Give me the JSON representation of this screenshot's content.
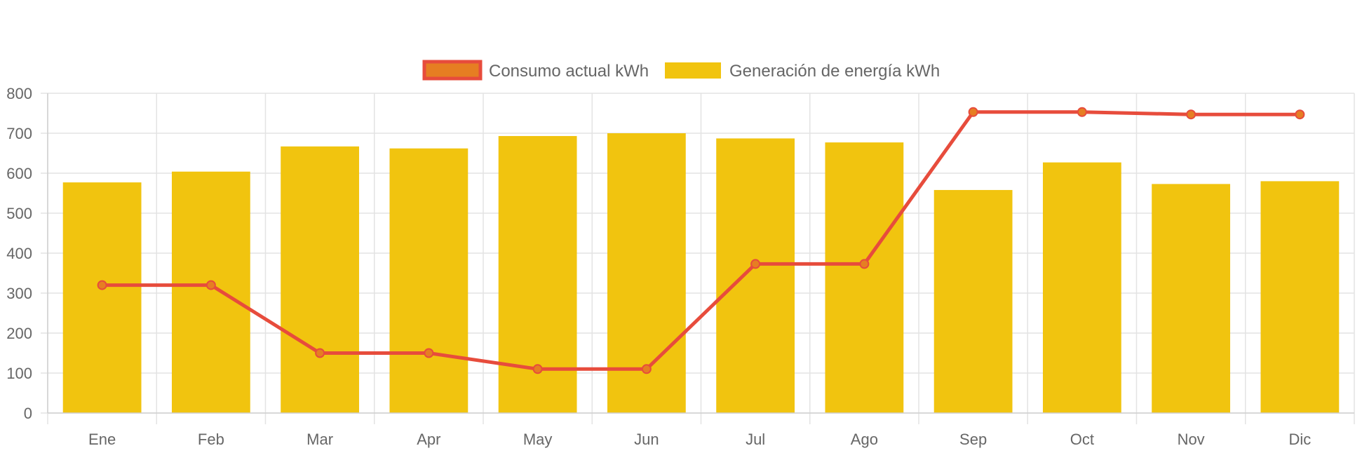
{
  "colors": {
    "bar": "#f1c40f",
    "line": "#e74c3c",
    "point_fill": "#e67e22",
    "grid": "#e3e3e3",
    "text": "#666666"
  },
  "chart_data": {
    "type": "bar",
    "categories": [
      "Ene",
      "Feb",
      "Mar",
      "Apr",
      "May",
      "Jun",
      "Jul",
      "Ago",
      "Sep",
      "Oct",
      "Nov",
      "Dic"
    ],
    "series": [
      {
        "name": "Consumo actual kWh",
        "type": "line",
        "values": [
          320,
          320,
          150,
          150,
          110,
          110,
          373,
          373,
          753,
          753,
          747,
          747
        ]
      },
      {
        "name": "Generación de energía kWh",
        "type": "bar",
        "values": [
          577,
          604,
          667,
          662,
          693,
          700,
          687,
          677,
          558,
          627,
          573,
          580
        ]
      }
    ],
    "ylim": [
      0,
      800
    ],
    "yticks": [
      "0",
      "100",
      "200",
      "300",
      "400",
      "500",
      "600",
      "700",
      "800"
    ],
    "grid": true,
    "legend": "top"
  }
}
